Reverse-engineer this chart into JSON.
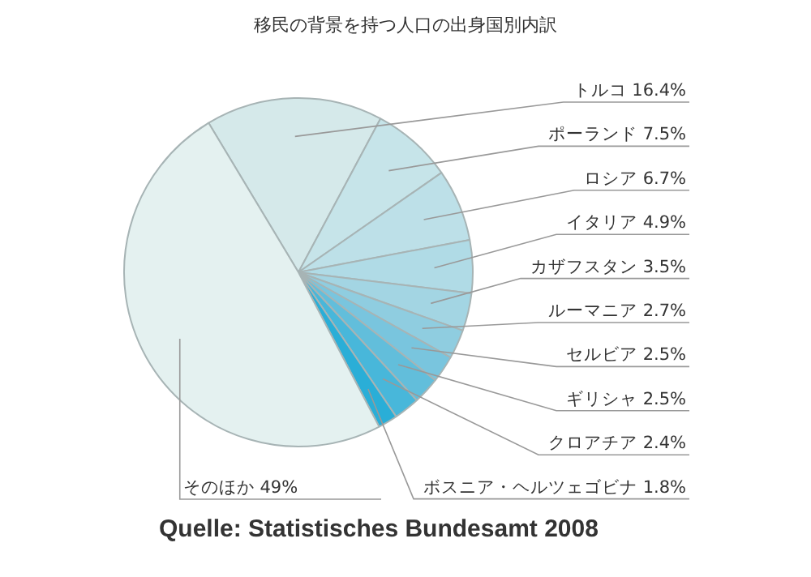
{
  "chart_data": {
    "type": "pie",
    "title": "移民の背景を持つ人口の出身国別内訳",
    "categories": [
      "トルコ",
      "ポーランド",
      "ロシア",
      "イタリア",
      "カザフスタン",
      "ルーマニア",
      "セルビア",
      "ギリシャ",
      "クロアチア",
      "ボスニア・ヘルツェゴビナ",
      "そのほか"
    ],
    "values": [
      16.4,
      7.5,
      6.7,
      4.9,
      3.5,
      2.7,
      2.5,
      2.5,
      2.4,
      1.8,
      49
    ],
    "value_labels": [
      "16.4%",
      "7.5%",
      "6.7%",
      "4.9%",
      "3.5%",
      "2.7%",
      "2.5%",
      "2.5%",
      "2.4%",
      "1.8%",
      "49%"
    ],
    "colors": [
      "#d5e9ea",
      "#c6e4e9",
      "#bde0e8",
      "#b0dbe6",
      "#a3d5e3",
      "#8fcde0",
      "#79c5de",
      "#62bedb",
      "#48b7da",
      "#2aaed7",
      "#e4f1f0"
    ],
    "legend": false,
    "annotations": [
      "Quelle: Statistisches Bundesamt 2008"
    ]
  }
}
